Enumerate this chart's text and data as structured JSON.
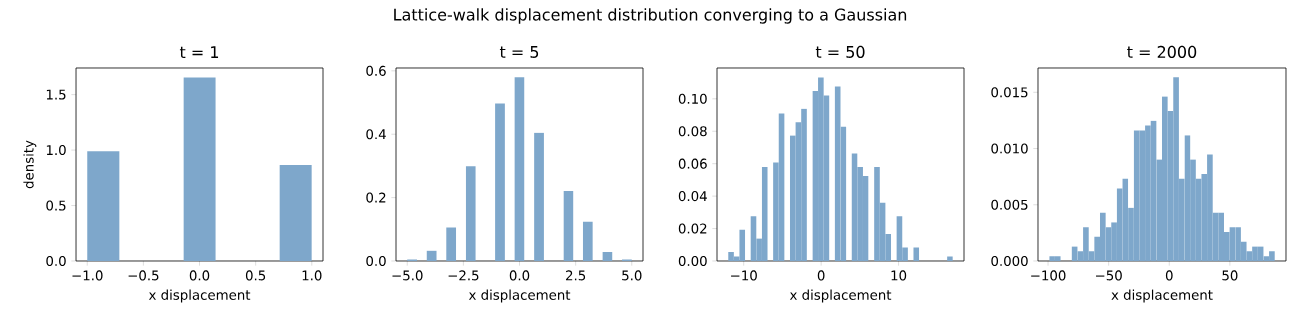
{
  "chart_data": [
    {
      "type": "histogram",
      "title": "t = 1",
      "xlabel": "x displacement",
      "ylabel": "density",
      "annotations": [
        "Lattice-walk displacement distribution converging to a Gaussian"
      ],
      "color": "#7ea7cb",
      "bins": [
        -1,
        -0.714,
        -0.429,
        -0.143,
        0.143,
        0.429,
        0.714,
        1
      ],
      "values": [
        0.99,
        0,
        0,
        1.655,
        0,
        0,
        0.865
      ],
      "xlim": [
        -1.1,
        1.1
      ],
      "ylim": [
        0,
        1.74
      ],
      "xticks": [
        {
          "value": -1,
          "label": "−1.0"
        },
        {
          "value": -0.5,
          "label": "−0.5"
        },
        {
          "value": 0,
          "label": "0.0"
        },
        {
          "value": 0.5,
          "label": "0.5"
        },
        {
          "value": 1,
          "label": "1.0"
        }
      ],
      "yticks": [
        {
          "value": 0,
          "label": "0.0"
        },
        {
          "value": 0.5,
          "label": "0.5"
        },
        {
          "value": 1,
          "label": "1.0"
        },
        {
          "value": 1.5,
          "label": "1.5"
        }
      ]
    },
    {
      "type": "histogram",
      "title": "t = 5",
      "xlabel": "x displacement",
      "color": "#7ea7cb",
      "bins": [
        -5,
        -4.565,
        -4.13,
        -3.696,
        -3.261,
        -2.826,
        -2.391,
        -1.957,
        -1.522,
        -1.087,
        -0.652,
        -0.217,
        0.217,
        0.652,
        1.087,
        1.522,
        1.957,
        2.391,
        2.826,
        3.261,
        3.696,
        4.13,
        4.565,
        5
      ],
      "values": [
        0.005,
        0,
        0.032,
        0,
        0.106,
        0,
        0.299,
        0,
        0,
        0.497,
        0,
        0.58,
        0,
        0.405,
        0,
        0,
        0.221,
        0,
        0.124,
        0,
        0.028,
        0,
        0.005
      ],
      "xlim": [
        -5.5,
        5.5
      ],
      "ylim": [
        0,
        0.609
      ],
      "xticks": [
        {
          "value": -5,
          "label": "−5.0"
        },
        {
          "value": -2.5,
          "label": "−2.5"
        },
        {
          "value": 0,
          "label": "0.0"
        },
        {
          "value": 2.5,
          "label": "2.5"
        },
        {
          "value": 5,
          "label": "5.0"
        }
      ],
      "yticks": [
        {
          "value": 0,
          "label": "0.0"
        },
        {
          "value": 0.2,
          "label": "0.2"
        },
        {
          "value": 0.4,
          "label": "0.4"
        },
        {
          "value": 0.6,
          "label": "0.6"
        }
      ]
    },
    {
      "type": "histogram",
      "title": "t = 50",
      "xlabel": "x displacement",
      "color": "#7ea7cb",
      "bins": [
        -12,
        -11.275,
        -10.55,
        -9.825,
        -9.1,
        -8.375,
        -7.65,
        -6.925,
        -6.2,
        -5.475,
        -4.75,
        -4.025,
        -3.3,
        -2.575,
        -1.85,
        -1.125,
        -0.4,
        0.325,
        1.05,
        1.775,
        2.5,
        3.225,
        3.95,
        4.675,
        5.4,
        6.125,
        6.85,
        7.575,
        8.3,
        9.025,
        9.75,
        10.475,
        11.2,
        11.925,
        12.65,
        13.375,
        14.1,
        14.825,
        15.55,
        16.275,
        17
      ],
      "values": [
        0.0055,
        0.0028,
        0.0193,
        0,
        0.0276,
        0.0138,
        0.0579,
        0,
        0.0607,
        0.091,
        0,
        0.0773,
        0.0855,
        0.0938,
        0,
        0.1048,
        0.1131,
        0.1021,
        0,
        0.1076,
        0.0828,
        0,
        0.0662,
        0.0579,
        0.0524,
        0,
        0.0579,
        0.0359,
        0.0166,
        0,
        0.0276,
        0.0083,
        0,
        0.0083,
        0,
        0,
        0,
        0,
        0,
        0.0028
      ],
      "xlim": [
        -13.45,
        18.45
      ],
      "ylim": [
        0,
        0.119
      ],
      "xticks": [
        {
          "value": -10,
          "label": "−10"
        },
        {
          "value": 0,
          "label": "0"
        },
        {
          "value": 10,
          "label": "10"
        }
      ],
      "yticks": [
        {
          "value": 0,
          "label": "0.00"
        },
        {
          "value": 0.02,
          "label": "0.02"
        },
        {
          "value": 0.04,
          "label": "0.04"
        },
        {
          "value": 0.06,
          "label": "0.06"
        },
        {
          "value": 0.08,
          "label": "0.08"
        },
        {
          "value": 0.1,
          "label": "0.10"
        }
      ]
    },
    {
      "type": "histogram",
      "title": "t = 2000",
      "xlabel": "x displacement",
      "color": "#7ea7cb",
      "bins": [
        -99,
        -94.35,
        -89.7,
        -85.05,
        -80.4,
        -75.75,
        -71.1,
        -66.45,
        -61.8,
        -57.15,
        -52.5,
        -47.85,
        -43.2,
        -38.55,
        -33.9,
        -29.25,
        -24.6,
        -19.95,
        -15.3,
        -10.65,
        -6,
        -1.35,
        3.3,
        7.95,
        12.6,
        17.25,
        21.9,
        26.55,
        31.2,
        35.85,
        40.5,
        45.15,
        49.8,
        54.45,
        59.1,
        63.75,
        68.4,
        73.05,
        77.7,
        82.35,
        87
      ],
      "values": [
        0.00043,
        0.00043,
        0,
        0,
        0.00129,
        0.00086,
        0.00301,
        0.00086,
        0.00215,
        0.0043,
        0.00301,
        0.00344,
        0.00645,
        0.00731,
        0.00473,
        0.01161,
        0.01161,
        0.01204,
        0.01247,
        0.00903,
        0.01462,
        0.01333,
        0.01634,
        0.00731,
        0.01118,
        0.00903,
        0.00731,
        0.00774,
        0.00946,
        0.0043,
        0.0043,
        0.00258,
        0.00301,
        0.00301,
        0.00172,
        0.00086,
        0.00129,
        0.00129,
        0.00043,
        0.00086
      ],
      "xlim": [
        -108.3,
        96.3
      ],
      "ylim": [
        0,
        0.01716
      ],
      "xticks": [
        {
          "value": -100,
          "label": "−100"
        },
        {
          "value": -50,
          "label": "−50"
        },
        {
          "value": 0,
          "label": "0"
        },
        {
          "value": 50,
          "label": "50"
        }
      ],
      "yticks": [
        {
          "value": 0,
          "label": "0.000"
        },
        {
          "value": 0.005,
          "label": "0.005"
        },
        {
          "value": 0.01,
          "label": "0.010"
        },
        {
          "value": 0.015,
          "label": "0.015"
        }
      ]
    }
  ]
}
